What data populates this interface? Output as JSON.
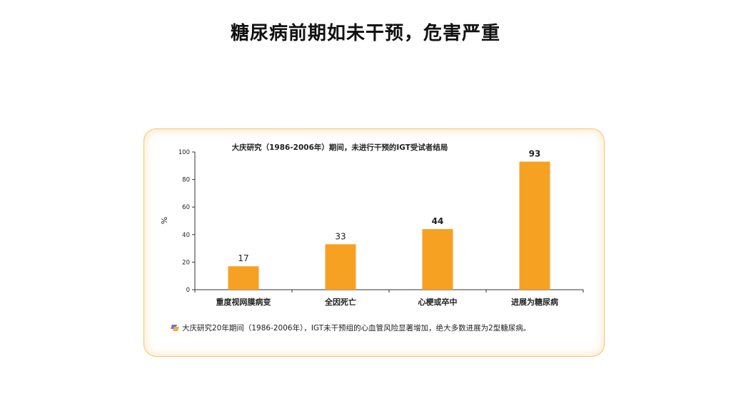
{
  "slide": {
    "title": "糖尿病前期如未干预，危害严重"
  },
  "footnote": {
    "text": "大庆研究20年期间（1986-2006年），IGT未干预组的心血管风险显著增加，绝大多数进展为2型糖尿病。"
  },
  "colors": {
    "bar": "#f7a123",
    "card_border": "#f6c46a",
    "axis": "#333333"
  },
  "icons": {
    "footnote_bullet": "bullet-square-icon"
  },
  "chart_data": {
    "type": "bar",
    "title": "大庆研究（1986-2006年）期间，未进行干预的IGT受试者结局",
    "ylabel": "%",
    "xlabel": "",
    "ylim": [
      0,
      100
    ],
    "yticks": [
      0,
      20,
      40,
      60,
      80,
      100
    ],
    "categories": [
      "重度视网膜病变",
      "全因死亡",
      "心梗或卒中",
      "进展为糖尿病"
    ],
    "values": [
      17,
      33,
      44,
      93
    ],
    "label_bold": [
      false,
      false,
      true,
      true
    ],
    "grid": false
  }
}
